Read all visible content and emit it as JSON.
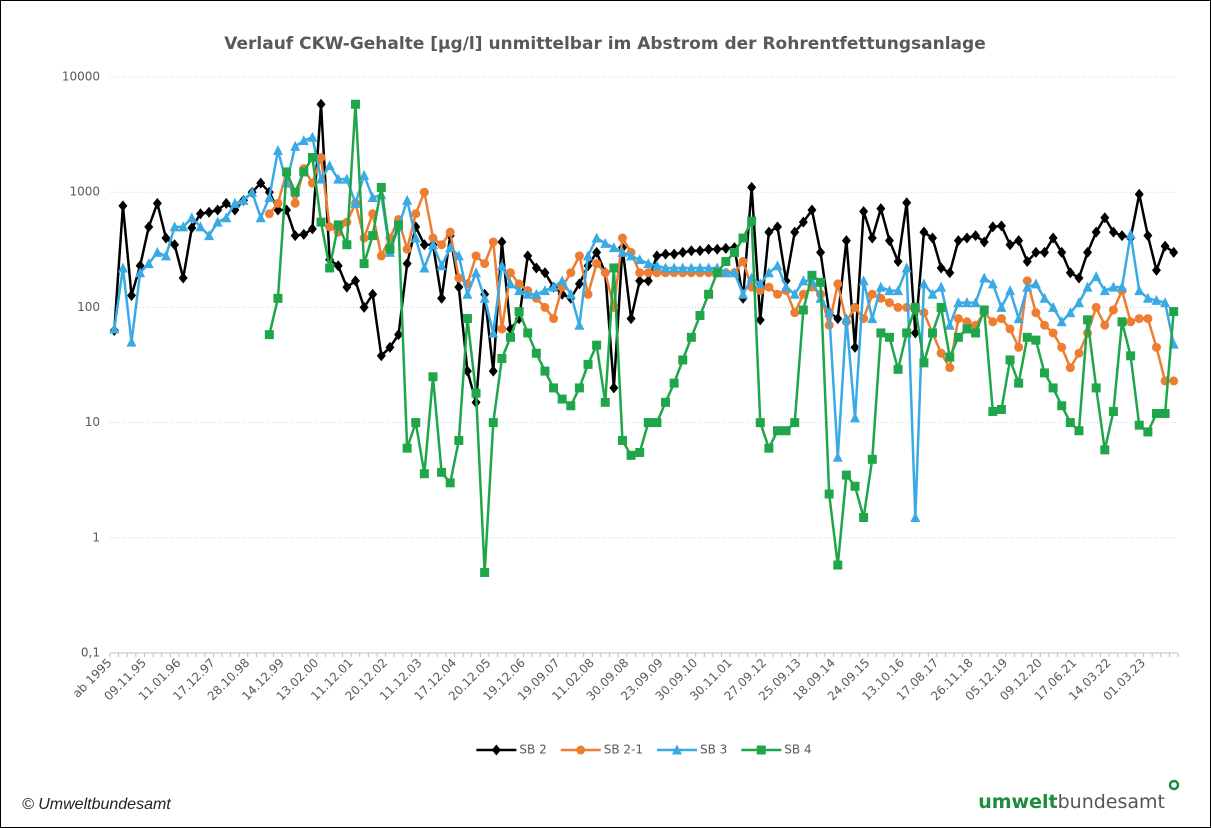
{
  "chart_data": {
    "type": "line",
    "title": "Verlauf CKW-Gehalte [µg/l] unmittelbar im Abstrom der Rohrentfettungsanlage",
    "log_y": true,
    "grid": true,
    "legend": "bottom",
    "ylim": [
      0.1,
      10000
    ],
    "yticks": [
      {
        "value": 0.1,
        "label": "0,1"
      },
      1,
      10,
      100,
      1000,
      10000
    ],
    "categories": [
      "ab 1995",
      null,
      null,
      null,
      "09.11.95",
      null,
      null,
      null,
      "11.01.96",
      null,
      null,
      null,
      "17.12.97",
      null,
      null,
      null,
      "28.10.98",
      null,
      null,
      null,
      "14.12.99",
      null,
      null,
      null,
      "13.02.00",
      null,
      null,
      null,
      "11.12.01",
      null,
      null,
      null,
      "20.12.02",
      null,
      null,
      null,
      "11.12.03",
      null,
      null,
      null,
      "17.12.04",
      null,
      null,
      null,
      "20.12.05",
      null,
      null,
      null,
      "19.12.06",
      null,
      null,
      null,
      "19.09.07",
      null,
      null,
      null,
      "11.02.08",
      null,
      null,
      null,
      "30.09.08",
      null,
      null,
      null,
      "23.09.09",
      null,
      null,
      null,
      "30.09.10",
      null,
      null,
      null,
      "30.11.01",
      null,
      null,
      null,
      "27.09.12",
      null,
      null,
      null,
      "25.09.13",
      null,
      null,
      null,
      "18.09.14",
      null,
      null,
      null,
      "24.09.15",
      null,
      null,
      null,
      "13.10.16",
      null,
      null,
      null,
      "17.08.17",
      null,
      null,
      null,
      "26.11.18",
      null,
      null,
      null,
      "05.12.19",
      null,
      null,
      null,
      "09.12.20",
      null,
      null,
      null,
      "17.06.21",
      null,
      null,
      null,
      "14.03.22",
      null,
      null,
      null,
      "01.03.23",
      null,
      null,
      null
    ],
    "series": [
      {
        "name": "SB 2",
        "color": "#000000",
        "marker": "diamond",
        "values": [
          63,
          760,
          127,
          230,
          500,
          800,
          400,
          350,
          180,
          490,
          650,
          670,
          700,
          800,
          700,
          850,
          1000,
          1200,
          1000,
          700,
          700,
          420,
          430,
          480,
          5800,
          260,
          230,
          150,
          170,
          100,
          130,
          38,
          45,
          58,
          240,
          500,
          350,
          350,
          120,
          420,
          150,
          28,
          15,
          130,
          28,
          370,
          65,
          80,
          280,
          220,
          200,
          150,
          130,
          120,
          160,
          230,
          300,
          200,
          20,
          330,
          80,
          170,
          170,
          280,
          290,
          290,
          300,
          310,
          310,
          320,
          320,
          325,
          330,
          120,
          1100,
          78,
          450,
          500,
          170,
          450,
          550,
          700,
          300,
          90,
          80,
          380,
          45,
          680,
          400,
          720,
          380,
          250,
          810,
          60,
          450,
          400,
          220,
          200,
          380,
          400,
          420,
          370,
          500,
          510,
          350,
          380,
          250,
          300,
          300,
          400,
          300,
          200,
          180,
          300,
          450,
          600,
          450,
          420,
          400,
          960,
          420,
          210,
          340,
          300
        ]
      },
      {
        "name": "SB 2-1",
        "color": "#ed7d31",
        "marker": "circle",
        "values": [
          null,
          null,
          null,
          null,
          null,
          null,
          null,
          null,
          null,
          null,
          null,
          null,
          null,
          null,
          null,
          null,
          null,
          null,
          650,
          800,
          1500,
          800,
          1600,
          1200,
          2000,
          500,
          450,
          550,
          800,
          400,
          650,
          280,
          400,
          580,
          320,
          650,
          1000,
          400,
          350,
          450,
          180,
          160,
          280,
          240,
          370,
          65,
          200,
          160,
          140,
          120,
          100,
          80,
          150,
          200,
          280,
          130,
          240,
          200,
          100,
          400,
          300,
          200,
          200,
          200,
          200,
          200,
          200,
          200,
          200,
          200,
          200,
          200,
          200,
          250,
          150,
          140,
          150,
          130,
          140,
          90,
          130,
          150,
          130,
          70,
          160,
          75,
          100,
          80,
          130,
          120,
          110,
          100,
          100,
          95,
          90,
          60,
          40,
          30,
          80,
          75,
          70,
          90,
          75,
          80,
          65,
          45,
          170,
          90,
          70,
          60,
          45,
          30,
          40,
          60,
          100,
          70,
          95,
          140,
          75,
          80,
          80,
          45,
          23,
          23
        ]
      },
      {
        "name": "SB 3",
        "color": "#3aaae4",
        "marker": "triangle",
        "values": [
          65,
          220,
          50,
          200,
          240,
          300,
          280,
          500,
          500,
          600,
          500,
          420,
          550,
          600,
          800,
          850,
          1000,
          600,
          900,
          2300,
          1200,
          2500,
          2800,
          3000,
          1300,
          1700,
          1300,
          1300,
          800,
          1400,
          900,
          950,
          300,
          500,
          850,
          400,
          220,
          350,
          230,
          330,
          280,
          130,
          200,
          120,
          60,
          230,
          160,
          140,
          130,
          130,
          140,
          150,
          170,
          130,
          70,
          280,
          400,
          360,
          330,
          300,
          280,
          260,
          240,
          230,
          220,
          220,
          220,
          220,
          220,
          220,
          220,
          200,
          200,
          130,
          180,
          160,
          200,
          230,
          150,
          130,
          170,
          170,
          120,
          90,
          5,
          80,
          11,
          170,
          80,
          150,
          140,
          140,
          220,
          1.5,
          160,
          130,
          150,
          70,
          110,
          110,
          110,
          180,
          160,
          100,
          140,
          80,
          150,
          160,
          120,
          100,
          75,
          90,
          110,
          150,
          185,
          140,
          150,
          150,
          430,
          140,
          120,
          115,
          110,
          48
        ]
      },
      {
        "name": "SB 4",
        "color": "#1fa64a",
        "marker": "square",
        "values": [
          null,
          null,
          null,
          null,
          null,
          null,
          null,
          null,
          null,
          null,
          null,
          null,
          null,
          null,
          null,
          null,
          null,
          null,
          58,
          120,
          1500,
          1000,
          1500,
          2000,
          550,
          220,
          520,
          350,
          5800,
          240,
          420,
          1100,
          320,
          520,
          6,
          10,
          3.6,
          25,
          3.7,
          3,
          7,
          80,
          18,
          0.5,
          10,
          36,
          55,
          92,
          60,
          40,
          28,
          20,
          16,
          14,
          20,
          32,
          47,
          15,
          220,
          7,
          5.2,
          5.5,
          10,
          10,
          15,
          22,
          35,
          55,
          85,
          130,
          200,
          250,
          300,
          400,
          560,
          10,
          6,
          8.5,
          8.5,
          10,
          95,
          190,
          165,
          2.4,
          0.58,
          3.5,
          2.8,
          1.5,
          4.8,
          60,
          55,
          29,
          60,
          100,
          33,
          60,
          100,
          37,
          55,
          65,
          60,
          95,
          12.5,
          13,
          35,
          22,
          55,
          52,
          27,
          20,
          14,
          10,
          8.5,
          78,
          20,
          5.8,
          12.5,
          75,
          38,
          9.5,
          8.3,
          12,
          12,
          92
        ]
      }
    ]
  },
  "footer": {
    "copyright": "© Umweltbundesamt",
    "logo_bold": "umwelt",
    "logo_rest": "bundesamt"
  }
}
